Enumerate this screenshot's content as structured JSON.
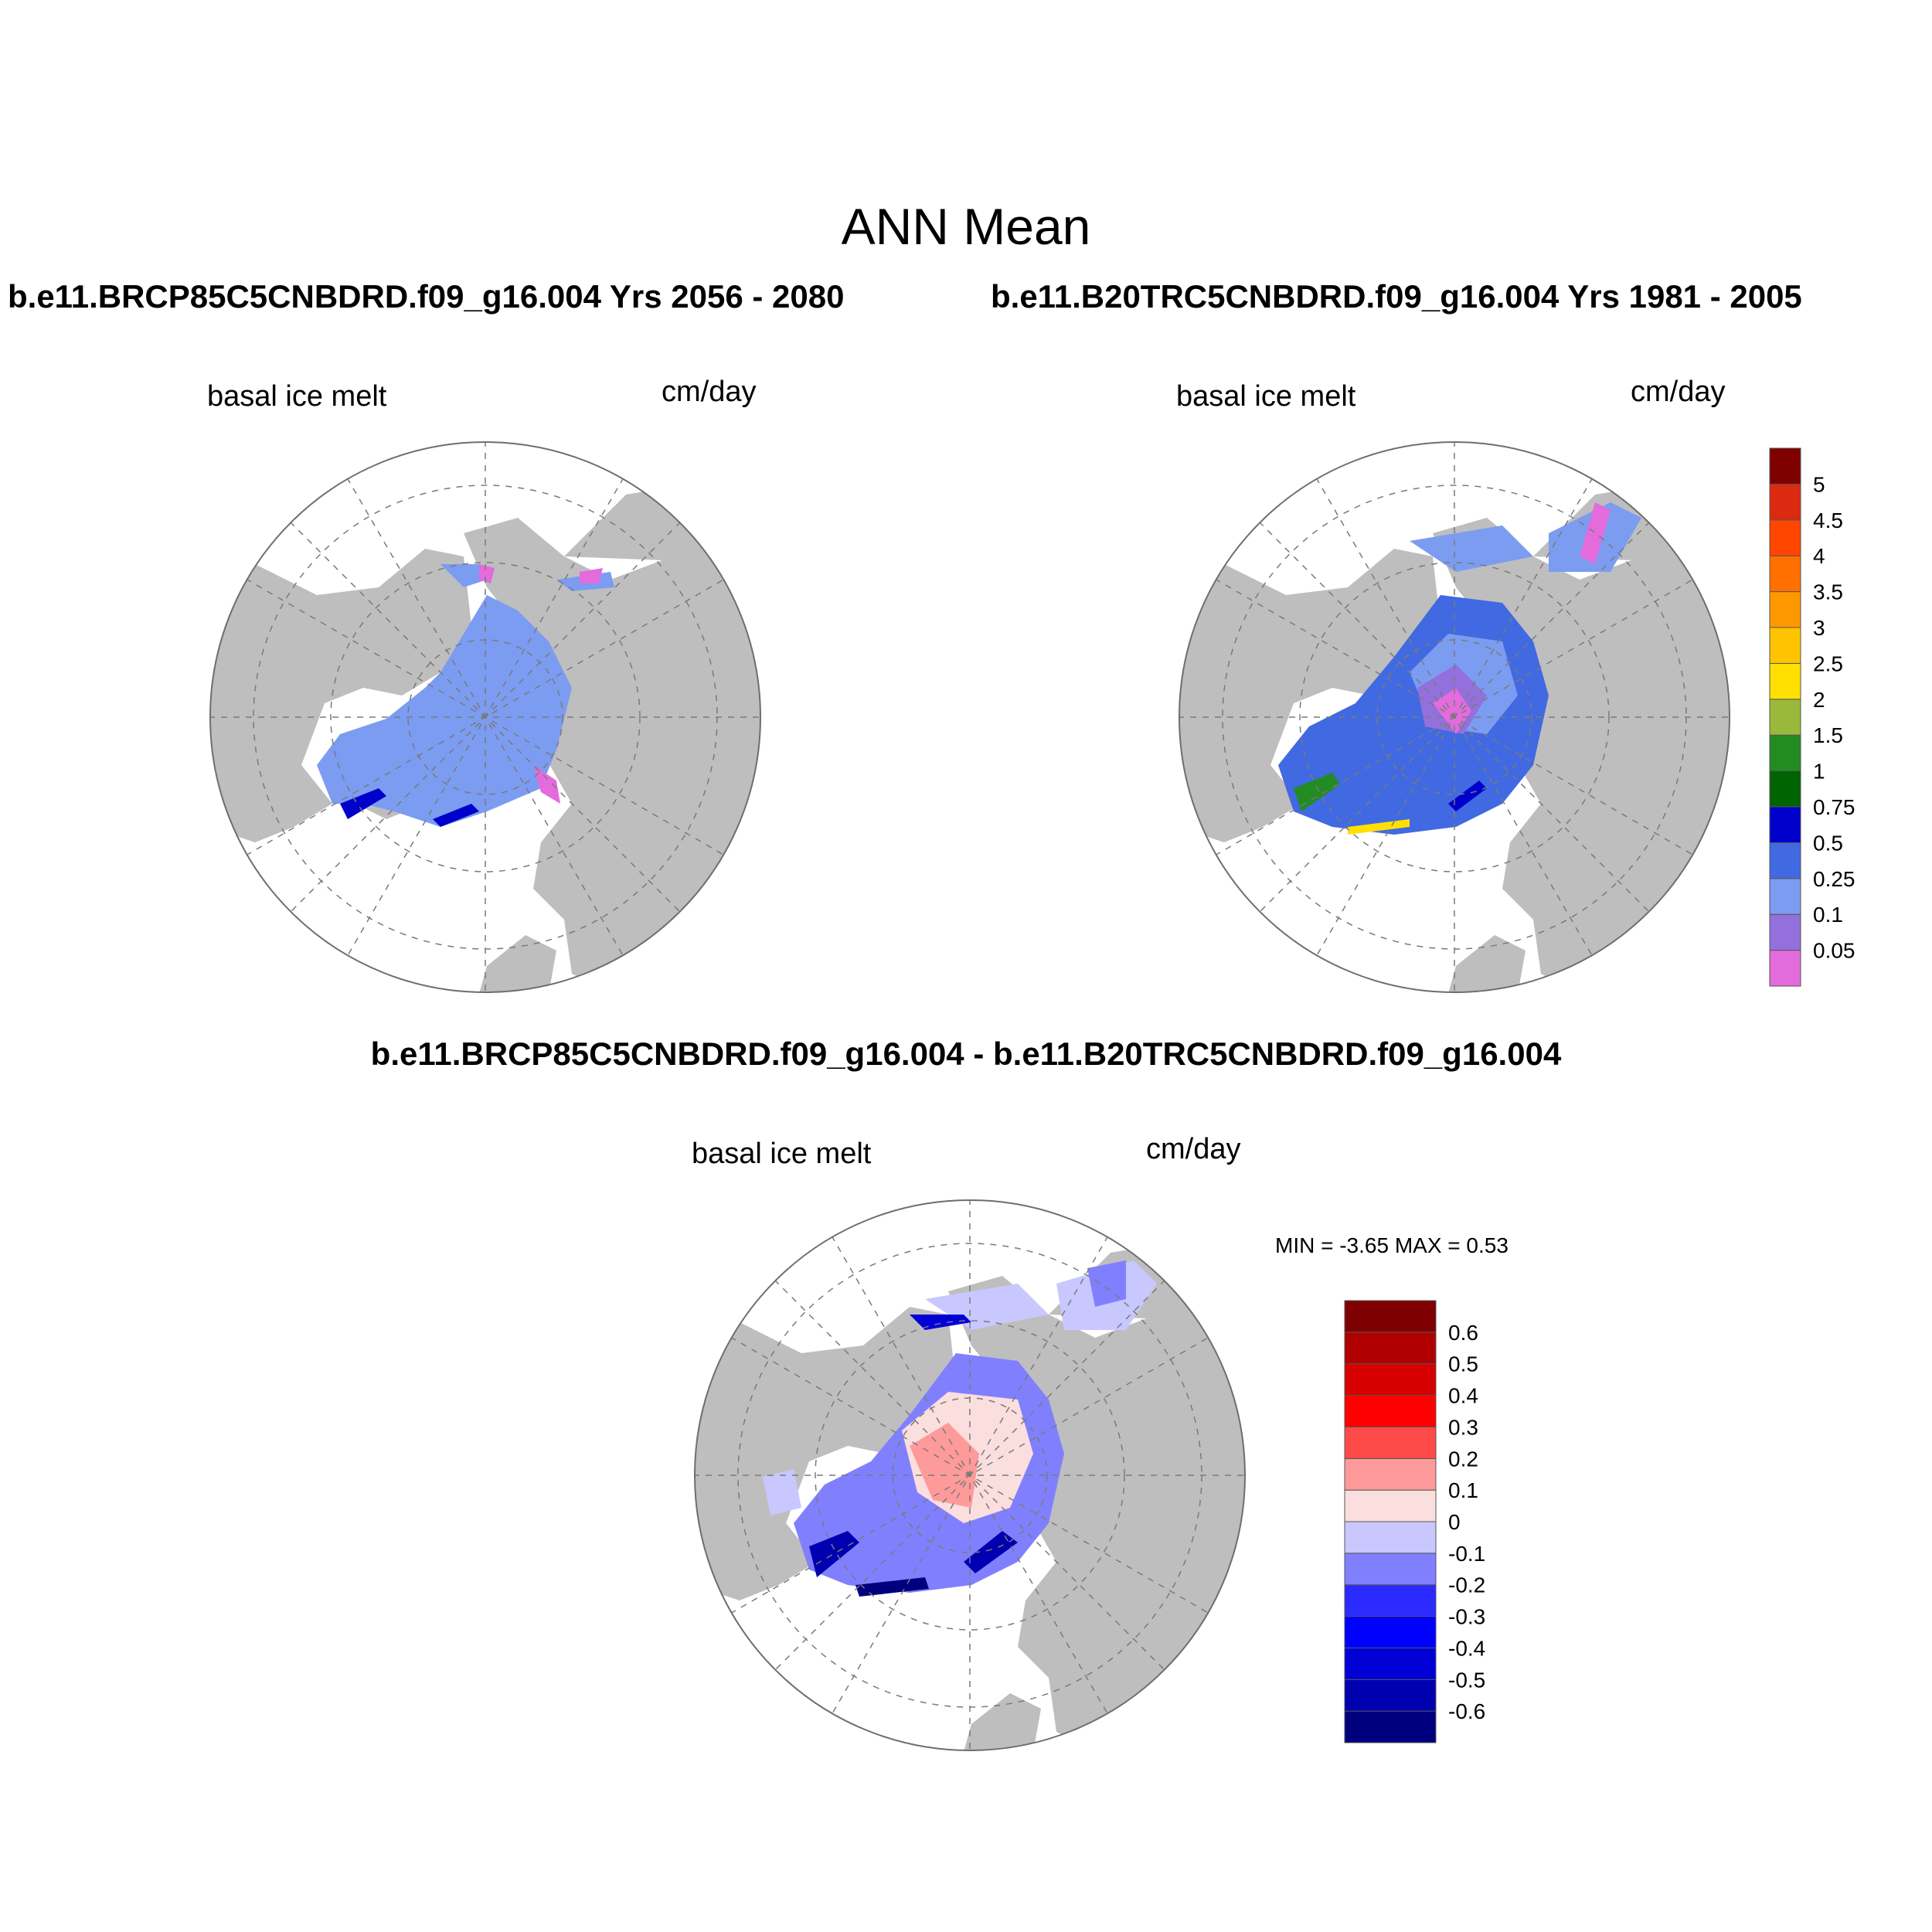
{
  "title": "ANN Mean",
  "panels": [
    {
      "case_title": "b.e11.BRCP85C5CNBDRD.f09_g16.004  Yrs 2056 - 2080",
      "variable": "basal ice melt",
      "units": "cm/day"
    },
    {
      "case_title": "b.e11.B20TRC5CNBDRD.f09_g16.004  Yrs 1981 - 2005",
      "variable": "basal ice melt",
      "units": "cm/day"
    },
    {
      "case_title": "b.e11.BRCP85C5CNBDRD.f09_g16.004 - b.e11.B20TRC5CNBDRD.f09_g16.004",
      "variable": "basal ice melt",
      "units": "cm/day",
      "min_max_text": "MIN =  -3.65 MAX =   0.53"
    }
  ],
  "colorbar_main": {
    "labels": [
      "0.05",
      "0.1",
      "0.25",
      "0.5",
      "0.75",
      "1",
      "1.5",
      "2",
      "2.5",
      "3",
      "3.5",
      "4",
      "4.5",
      "5"
    ],
    "colors": [
      "#e36bdc",
      "#9370db",
      "#7b9cf0",
      "#4169e1",
      "#0000cd",
      "#006400",
      "#228b22",
      "#9ab93a",
      "#ffe000",
      "#ffc400",
      "#ff9800",
      "#ff7000",
      "#ff4500",
      "#dc2a10",
      "#800000"
    ]
  },
  "colorbar_diff": {
    "labels": [
      "-0.6",
      "-0.5",
      "-0.4",
      "-0.3",
      "-0.2",
      "-0.1",
      "0",
      "0.1",
      "0.2",
      "0.3",
      "0.4",
      "0.5",
      "0.6"
    ],
    "colors": [
      "#00007f",
      "#0000b0",
      "#0000d6",
      "#0000ff",
      "#2b2bff",
      "#8080ff",
      "#c8c8ff",
      "#fbdede",
      "#ff9a9a",
      "#ff4a4a",
      "#ff0000",
      "#d60000",
      "#b00000",
      "#7f0000"
    ]
  },
  "map_colors": {
    "land": "#bebebe",
    "ocean": "#ffffff",
    "outline": "#6e6e6e"
  }
}
